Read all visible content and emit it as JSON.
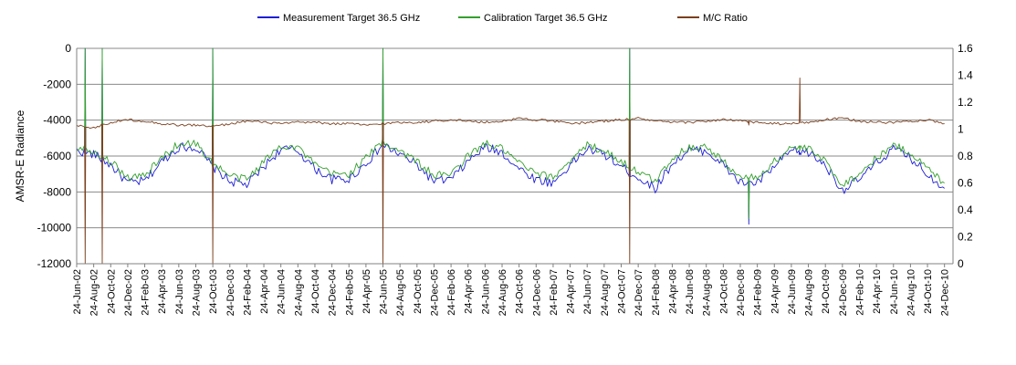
{
  "chart_data": {
    "type": "line",
    "title": "",
    "ylabel": "AMSR-E Radiance",
    "y2label": "",
    "ylim": [
      -12000,
      0
    ],
    "y_ticks": [
      "0",
      "-2000",
      "-4000",
      "-6000",
      "-8000",
      "-10000",
      "-12000"
    ],
    "y2lim": [
      0,
      1.6
    ],
    "y2_ticks": [
      "1.6",
      "1.4",
      "1.2",
      "1",
      "0.8",
      "0.6",
      "0.4",
      "0.2",
      "0"
    ],
    "grid": "horizontal",
    "legend_position": "top",
    "x_tick_labels": [
      "24-Jun-02",
      "24-Aug-02",
      "24-Oct-02",
      "24-Dec-02",
      "24-Feb-03",
      "24-Apr-03",
      "24-Jun-03",
      "24-Aug-03",
      "24-Oct-03",
      "24-Dec-03",
      "24-Feb-04",
      "24-Apr-04",
      "24-Jun-04",
      "24-Aug-04",
      "24-Oct-04",
      "24-Dec-04",
      "24-Feb-05",
      "24-Apr-05",
      "24-Jun-05",
      "24-Aug-05",
      "24-Oct-05",
      "24-Dec-05",
      "24-Feb-06",
      "24-Apr-06",
      "24-Jun-06",
      "24-Aug-06",
      "24-Oct-06",
      "24-Dec-06",
      "24-Feb-07",
      "24-Apr-07",
      "24-Jun-07",
      "24-Aug-07",
      "24-Oct-07",
      "24-Dec-07",
      "24-Feb-08",
      "24-Apr-08",
      "24-Jun-08",
      "24-Aug-08",
      "24-Oct-08",
      "24-Dec-08",
      "24-Feb-09",
      "24-Apr-09",
      "24-Jun-09",
      "24-Aug-09",
      "24-Oct-09",
      "24-Dec-09",
      "24-Feb-10",
      "24-Apr-10",
      "24-Jun-10",
      "24-Aug-10",
      "24-Oct-10",
      "24-Dec-10"
    ],
    "series": [
      {
        "name": "Measurement Target 36.5 GHz",
        "axis": "left",
        "color": "#1f1fd6",
        "x": [
          "Jun-02",
          "Aug-02",
          "Oct-02",
          "Dec-02",
          "Feb-03",
          "Apr-03",
          "Jun-03",
          "Aug-03",
          "Oct-03",
          "Dec-03",
          "Feb-04",
          "Apr-04",
          "Jun-04",
          "Aug-04",
          "Oct-04",
          "Dec-04",
          "Feb-05",
          "Apr-05",
          "Jun-05",
          "Aug-05",
          "Oct-05",
          "Dec-05",
          "Feb-06",
          "Apr-06",
          "Jun-06",
          "Aug-06",
          "Oct-06",
          "Dec-06",
          "Feb-07",
          "Apr-07",
          "Jun-07",
          "Aug-07",
          "Oct-07",
          "Dec-07",
          "Feb-08",
          "Apr-08",
          "Jun-08",
          "Aug-08",
          "Oct-08",
          "Dec-08",
          "Feb-09",
          "Apr-09",
          "Jun-09",
          "Aug-09",
          "Oct-09",
          "Dec-09",
          "Feb-10",
          "Apr-10",
          "Jun-10",
          "Aug-10",
          "Oct-10",
          "Dec-10"
        ],
        "values": [
          -5700,
          -5900,
          -6500,
          -7500,
          -7400,
          -6300,
          -5500,
          -5500,
          -6600,
          -7400,
          -7600,
          -6600,
          -5600,
          -5700,
          -6700,
          -7300,
          -7300,
          -6400,
          -5400,
          -5900,
          -6500,
          -7400,
          -7300,
          -6300,
          -5500,
          -5800,
          -6700,
          -7300,
          -7500,
          -6500,
          -5600,
          -5900,
          -6600,
          -7200,
          -7800,
          -6400,
          -5700,
          -5700,
          -6500,
          -7500,
          -7500,
          -6600,
          -5700,
          -5800,
          -6500,
          -7900,
          -7300,
          -6400,
          -5600,
          -6100,
          -7000,
          -7800
        ]
      },
      {
        "name": "Calibration Target 36.5 GHz",
        "axis": "left",
        "color": "#33a02c",
        "x": [
          "Jun-02",
          "Aug-02",
          "Oct-02",
          "Dec-02",
          "Feb-03",
          "Apr-03",
          "Jun-03",
          "Aug-03",
          "Oct-03",
          "Dec-03",
          "Feb-04",
          "Apr-04",
          "Jun-04",
          "Aug-04",
          "Oct-04",
          "Dec-04",
          "Feb-05",
          "Apr-05",
          "Jun-05",
          "Aug-05",
          "Oct-05",
          "Dec-05",
          "Feb-06",
          "Apr-06",
          "Jun-06",
          "Aug-06",
          "Oct-06",
          "Dec-06",
          "Feb-07",
          "Apr-07",
          "Jun-07",
          "Aug-07",
          "Oct-07",
          "Dec-07",
          "Feb-08",
          "Apr-08",
          "Jun-08",
          "Aug-08",
          "Oct-08",
          "Dec-08",
          "Feb-09",
          "Apr-09",
          "Jun-09",
          "Aug-09",
          "Oct-09",
          "Dec-09",
          "Feb-10",
          "Apr-10",
          "Jun-10",
          "Aug-10",
          "Oct-10",
          "Dec-10"
        ],
        "values": [
          -5500,
          -5700,
          -6300,
          -7200,
          -7100,
          -6100,
          -5300,
          -5300,
          -6400,
          -7100,
          -7300,
          -6300,
          -5400,
          -5500,
          -6500,
          -7000,
          -7000,
          -6100,
          -5200,
          -5700,
          -6300,
          -7100,
          -7000,
          -6000,
          -5300,
          -5600,
          -6400,
          -7000,
          -7200,
          -6200,
          -5400,
          -5700,
          -6300,
          -6900,
          -7400,
          -6100,
          -5500,
          -5500,
          -6300,
          -7200,
          -7200,
          -6300,
          -5500,
          -5600,
          -6300,
          -7600,
          -7000,
          -6100,
          -5400,
          -5800,
          -6700,
          -7500
        ]
      },
      {
        "name": "M/C Ratio",
        "axis": "right",
        "color": "#7b3f1d",
        "x": [
          "Jun-02",
          "Aug-02",
          "Oct-02",
          "Dec-02",
          "Feb-03",
          "Apr-03",
          "Jun-03",
          "Aug-03",
          "Oct-03",
          "Dec-03",
          "Feb-04",
          "Apr-04",
          "Jun-04",
          "Aug-04",
          "Oct-04",
          "Dec-04",
          "Feb-05",
          "Apr-05",
          "Jun-05",
          "Aug-05",
          "Oct-05",
          "Dec-05",
          "Feb-06",
          "Apr-06",
          "Jun-06",
          "Aug-06",
          "Oct-06",
          "Dec-06",
          "Feb-07",
          "Apr-07",
          "Jun-07",
          "Aug-07",
          "Oct-07",
          "Dec-07",
          "Feb-08",
          "Apr-08",
          "Jun-08",
          "Aug-08",
          "Oct-08",
          "Dec-08",
          "Feb-09",
          "Apr-09",
          "Jun-09",
          "Aug-09",
          "Oct-09",
          "Dec-09",
          "Feb-10",
          "Apr-10",
          "Jun-10",
          "Aug-10",
          "Oct-10",
          "Dec-10"
        ],
        "values": [
          1.03,
          1.01,
          1.05,
          1.07,
          1.06,
          1.04,
          1.03,
          1.03,
          1.02,
          1.04,
          1.06,
          1.05,
          1.04,
          1.05,
          1.05,
          1.04,
          1.04,
          1.03,
          1.04,
          1.05,
          1.05,
          1.06,
          1.07,
          1.06,
          1.05,
          1.06,
          1.08,
          1.07,
          1.06,
          1.04,
          1.05,
          1.06,
          1.07,
          1.08,
          1.06,
          1.05,
          1.05,
          1.06,
          1.07,
          1.06,
          1.05,
          1.04,
          1.04,
          1.05,
          1.07,
          1.08,
          1.06,
          1.05,
          1.05,
          1.06,
          1.07,
          1.04
        ]
      }
    ],
    "spikes": [
      {
        "date": "Jul-02",
        "measurement": 0,
        "calibration": 0,
        "ratio": 0
      },
      {
        "date": "Sep-02",
        "measurement": 0,
        "calibration": 0,
        "ratio": 0
      },
      {
        "date": "Oct-03",
        "measurement": 0,
        "calibration": 0,
        "ratio": 0
      },
      {
        "date": "Jun-05",
        "measurement": 0,
        "calibration": 0,
        "ratio": 0
      },
      {
        "date": "Nov-07",
        "measurement": 0,
        "calibration": 0,
        "ratio": 0
      },
      {
        "date": "Jan-09",
        "measurement": -9800,
        "calibration": -9500,
        "ratio": 1.03
      },
      {
        "date": "Jul-09",
        "measurement": -5800,
        "calibration": -5700,
        "ratio": 1.38
      }
    ]
  }
}
